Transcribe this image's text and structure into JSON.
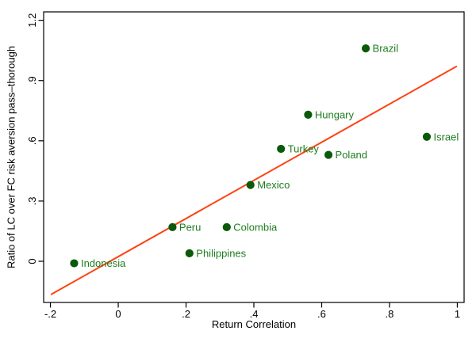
{
  "chart_data": {
    "type": "scatter",
    "title": "",
    "xlabel": "Return Correlation",
    "ylabel": "Ratio of LC over FC risk aversion pass–thorough",
    "xlim": [
      -0.22,
      1.02
    ],
    "ylim": [
      -0.205,
      1.242
    ],
    "grid": false,
    "legend": null,
    "xticks": {
      "values": [
        -0.2,
        0,
        0.2,
        0.4,
        0.6,
        0.8,
        1.0
      ],
      "labels": [
        "-.2",
        "0",
        ".2",
        ".4",
        ".6",
        ".8",
        "1"
      ]
    },
    "yticks": {
      "values": [
        0,
        0.3,
        0.6,
        0.9,
        1.2
      ],
      "labels": [
        "0",
        ".3",
        ".6",
        ".9",
        "1.2"
      ]
    },
    "series": [
      {
        "name": "countries",
        "marker": "filled-circle",
        "points": [
          {
            "label": "Indonesia",
            "x": -0.13,
            "y": -0.01
          },
          {
            "label": "Peru",
            "x": 0.16,
            "y": 0.17
          },
          {
            "label": "Philippines",
            "x": 0.21,
            "y": 0.04
          },
          {
            "label": "Colombia",
            "x": 0.32,
            "y": 0.17
          },
          {
            "label": "Mexico",
            "x": 0.39,
            "y": 0.38
          },
          {
            "label": "Turkey",
            "x": 0.48,
            "y": 0.56
          },
          {
            "label": "Hungary",
            "x": 0.56,
            "y": 0.73
          },
          {
            "label": "Poland",
            "x": 0.62,
            "y": 0.53
          },
          {
            "label": "Brazil",
            "x": 0.73,
            "y": 1.06
          },
          {
            "label": "Israel",
            "x": 0.91,
            "y": 0.62
          }
        ]
      }
    ],
    "fit_line": {
      "x1": -0.197,
      "y1": -0.164,
      "x2": 0.997,
      "y2": 0.97
    }
  },
  "colors": {
    "background": "#ffffff",
    "axis": "#000000",
    "tick_label": "#000000",
    "marker": "#0a5a0a",
    "point_label": "#1e7d1e",
    "fit_line": "#fe4312"
  }
}
